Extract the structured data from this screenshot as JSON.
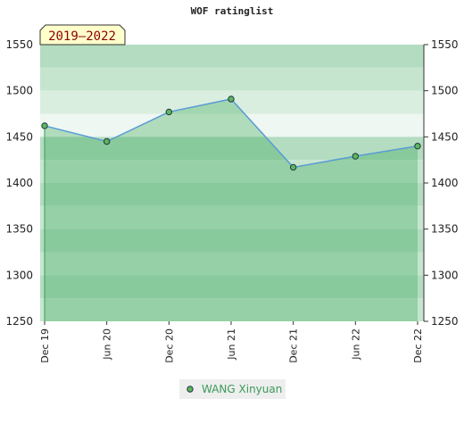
{
  "chart_data": {
    "type": "line",
    "title": "WOF ratinglist",
    "period": "2019–2022",
    "categories": [
      "Dec 19",
      "Jun 20",
      "Dec 20",
      "Jun 21",
      "Dec 21",
      "Jun 22",
      "Dec 22"
    ],
    "series": [
      {
        "name": "WANG Xinyuan",
        "color": "#5a9bd5",
        "marker_color": "#5cb85c",
        "values": [
          1462,
          1445,
          1477,
          1491,
          1417,
          1429,
          1440
        ]
      }
    ],
    "ylim": [
      1250,
      1550
    ],
    "yticks": [
      1250,
      1300,
      1350,
      1400,
      1450,
      1500,
      1550
    ],
    "legend": "bottom"
  }
}
